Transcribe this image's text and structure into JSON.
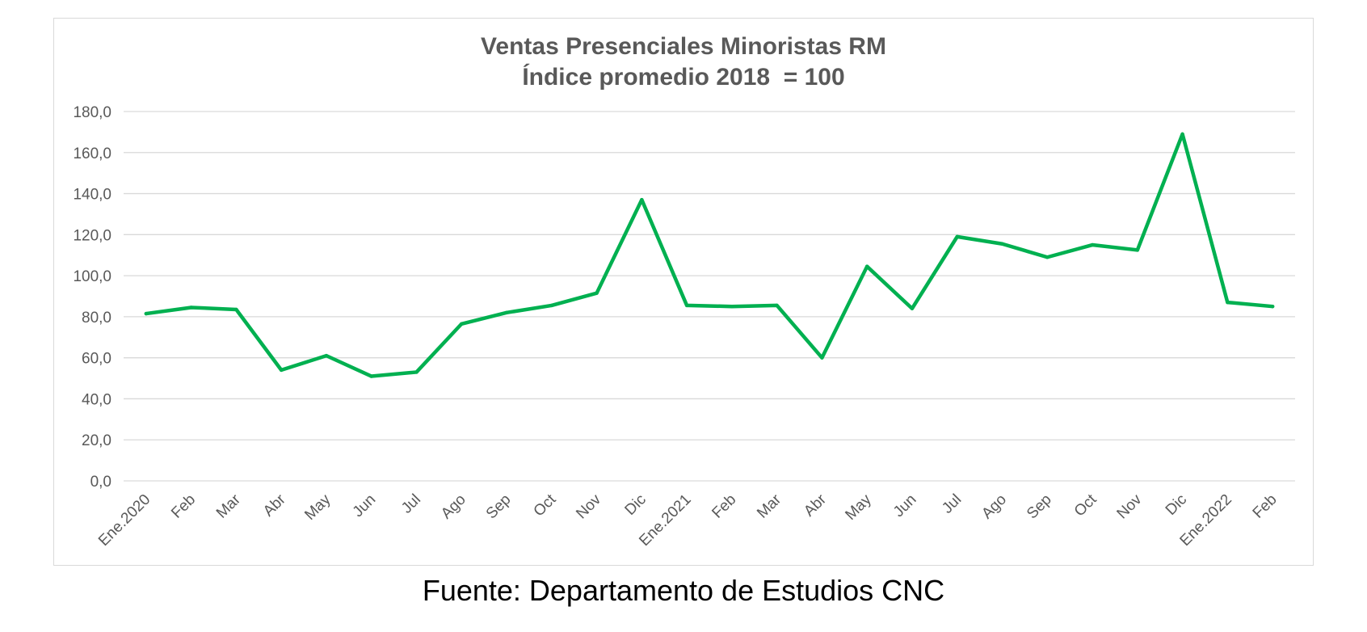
{
  "chart_data": {
    "type": "line",
    "title": "Ventas Presenciales Minoristas RM",
    "subtitle": "Índice promedio 2018  = 100",
    "categories": [
      "Ene.2020",
      "Feb",
      "Mar",
      "Abr",
      "May",
      "Jun",
      "Jul",
      "Ago",
      "Sep",
      "Oct",
      "Nov",
      "Dic",
      "Ene.2021",
      "Feb",
      "Mar",
      "Abr",
      "May",
      "Jun",
      "Jul",
      "Ago",
      "Sep",
      "Oct",
      "Nov",
      "Dic",
      "Ene.2022",
      "Feb"
    ],
    "series": [
      {
        "values": [
          81.5,
          84.5,
          83.5,
          54.0,
          61.0,
          51.0,
          53.0,
          76.5,
          82.0,
          85.5,
          91.5,
          137.0,
          85.5,
          85.0,
          85.5,
          60.0,
          104.5,
          84.0,
          119.0,
          115.5,
          109.0,
          115.0,
          112.5,
          169.0,
          87.0,
          85.0
        ],
        "color": "#00b050"
      }
    ],
    "y_ticks": [
      "0,0",
      "20,0",
      "40,0",
      "60,0",
      "80,0",
      "100,0",
      "120,0",
      "140,0",
      "160,0",
      "180,0"
    ],
    "ylim": [
      0,
      180
    ],
    "grid": true,
    "legend": "none"
  },
  "footer": {
    "source": "Fuente: Departamento de Estudios CNC"
  }
}
